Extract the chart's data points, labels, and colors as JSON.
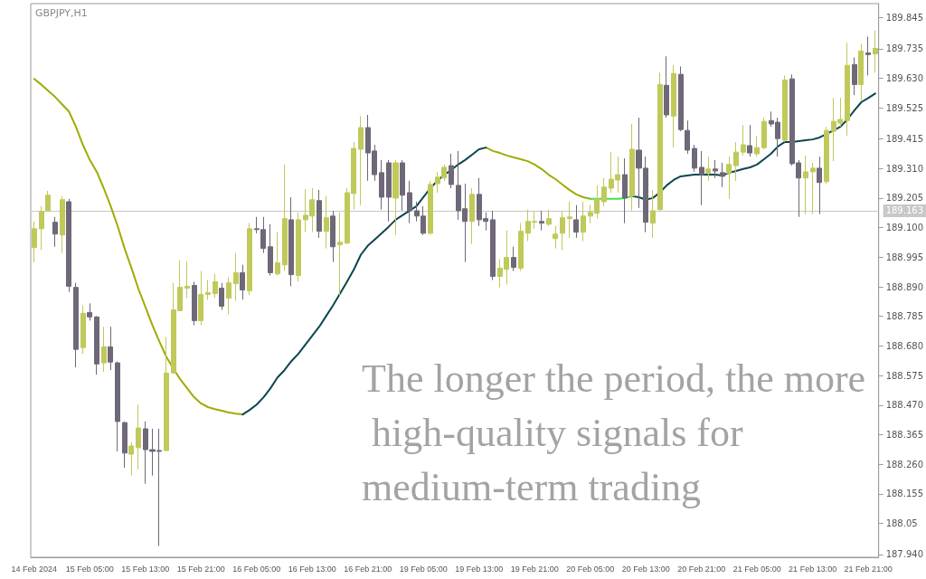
{
  "chart_data": {
    "type": "candlestick",
    "title": "GBPJPY,H1",
    "annotations": [
      "The longer the period, the more high-quality signals for medium-term trading"
    ],
    "categories": [
      "14 Feb 2024",
      null,
      null,
      null,
      null,
      null,
      null,
      null,
      "15 Feb 05:00",
      null,
      null,
      null,
      null,
      null,
      null,
      null,
      "15 Feb 13:00",
      null,
      null,
      null,
      null,
      null,
      null,
      null,
      "15 Feb 21:00",
      null,
      null,
      null,
      null,
      null,
      null,
      null,
      "16 Feb 05:00",
      null,
      null,
      null,
      null,
      null,
      null,
      null,
      "16 Feb 13:00",
      null,
      null,
      null,
      null,
      null,
      null,
      null,
      "16 Feb 21:00",
      null,
      null,
      null,
      null,
      null,
      null,
      null,
      "19 Feb 05:00",
      null,
      null,
      null,
      null,
      null,
      null,
      null,
      "19 Feb 13:00",
      null,
      null,
      null,
      null,
      null,
      null,
      null,
      "19 Feb 21:00",
      null,
      null,
      null,
      null,
      null,
      null,
      null,
      "20 Feb 05:00",
      null,
      null,
      null,
      null,
      null,
      null,
      null,
      "20 Feb 13:00",
      null,
      null,
      null,
      null,
      null,
      null,
      null,
      "20 Feb 21:00",
      null,
      null,
      null,
      null,
      null,
      null,
      null,
      "21 Feb 05:00",
      null,
      null,
      null,
      null,
      null,
      null,
      null,
      "21 Feb 13:00",
      null,
      null,
      null,
      null,
      null,
      null,
      null,
      "21 Feb 21:00",
      null
    ],
    "colors": [
      "#c0c95a",
      "#c0c95a",
      "#c0c95a",
      "#6f6878",
      "#c0c95a",
      "#6f6878",
      "#6f6878",
      "#c0c95a",
      "#6f6878",
      "#6f6878",
      "#c0c95a",
      "#6f6878",
      "#6f6878",
      "#6f6878",
      "#c0c95a",
      "#c0c95a",
      "#6f6878",
      "#6f6878",
      "#6f6878",
      "#c0c95a",
      "#c0c95a",
      "#c0c95a",
      "#c0c95a",
      "#6f6878",
      "#c0c95a",
      "#c0c95a",
      "#c0c95a",
      "#6f6878",
      "#c0c95a",
      "#c0c95a",
      "#6f6878",
      "#c0c95a",
      "#6f6878",
      "#6f6878",
      "#6f6878",
      "#c0c95a",
      "#c0c95a",
      "#6f6878",
      "#c0c95a",
      "#c0c95a",
      "#c0c95a",
      "#6f6878",
      "#c0c95a",
      "#6f6878",
      "#c0c95a",
      "#c0c95a",
      "#c0c95a",
      "#c0c95a",
      "#6f6878",
      "#6f6878",
      "#6f6878",
      "#6f6878",
      "#c0c95a",
      "#6f6878",
      "#6f6878",
      "#6f6878",
      "#6f6878",
      "#c0c95a",
      "#c0c95a",
      "#c0c95a",
      "#6f6878",
      "#6f6878",
      "#6f6878",
      "#c0c95a",
      "#6f6878",
      "#6f6878",
      "#6f6878",
      "#c0c95a",
      "#c0c95a",
      "#6f6878",
      "#c0c95a",
      "#c0c95a",
      "#c0c95a",
      "#6f6878",
      "#c0c95a",
      "#c0c95a",
      "#c0c95a",
      "#c0c95a",
      "#6f6878",
      "#c0c95a",
      "#c0c95a",
      "#c0c95a",
      "#c0c95a",
      "#c0c95a",
      "#c0c95a",
      "#6f6878",
      "#c0c95a",
      "#6f6878",
      "#6f6878",
      "#c0c95a",
      "#c0c95a",
      "#6f6878",
      "#c0c95a",
      "#6f6878",
      "#6f6878",
      "#6f6878",
      "#6f6878",
      "#c0c95a",
      "#6f6878",
      "#6f6878",
      "#c0c95a",
      "#c0c95a",
      "#c0c95a",
      "#6f6878",
      "#c0c95a",
      "#c0c95a",
      "#6f6878",
      "#6f6878",
      "#c0c95a",
      "#6f6878",
      "#6f6878",
      "#c0c95a",
      "#c0c95a",
      "#6f6878",
      "#c0c95a",
      "#c0c95a",
      "#c0c95a",
      "#c0c95a",
      "#6f6878",
      "#c0c95a",
      "#6f6878",
      "#c0c95a"
    ],
    "ohlc": [
      [
        189.029,
        189.122,
        188.978,
        189.096
      ],
      [
        189.096,
        189.176,
        189.02,
        189.157
      ],
      [
        189.16,
        189.231,
        189.16,
        189.215
      ],
      [
        189.119,
        189.138,
        189.032,
        189.077
      ],
      [
        189.074,
        189.212,
        189.01,
        189.199
      ],
      [
        189.192,
        189.202,
        188.872,
        188.892
      ],
      [
        188.888,
        188.904,
        188.604,
        188.668
      ],
      [
        188.674,
        188.824,
        188.652,
        188.796
      ],
      [
        188.799,
        188.831,
        188.77,
        188.783
      ],
      [
        188.783,
        188.786,
        188.578,
        188.616
      ],
      [
        188.62,
        188.748,
        188.588,
        188.677
      ],
      [
        188.677,
        188.748,
        188.594,
        188.623
      ],
      [
        188.62,
        188.625,
        188.306,
        188.412
      ],
      [
        188.408,
        188.412,
        188.248,
        188.3
      ],
      [
        188.296,
        188.338,
        188.22,
        188.325
      ],
      [
        188.319,
        188.472,
        188.242,
        188.389
      ],
      [
        188.386,
        188.412,
        188.191,
        188.312
      ],
      [
        188.312,
        188.386,
        188.22,
        188.306
      ],
      [
        188.309,
        188.386,
        187.97,
        188.306
      ],
      [
        188.309,
        188.712,
        188.306,
        188.584
      ],
      [
        188.584,
        188.904,
        188.584,
        188.808
      ],
      [
        188.805,
        188.984,
        188.805,
        188.888
      ],
      [
        188.885,
        188.981,
        188.85,
        188.892
      ],
      [
        188.895,
        188.908,
        188.754,
        188.77
      ],
      [
        188.77,
        188.946,
        188.754,
        188.863
      ],
      [
        188.863,
        188.914,
        188.844,
        188.869
      ],
      [
        188.866,
        188.936,
        188.85,
        188.908
      ],
      [
        188.885,
        188.904,
        188.808,
        188.821
      ],
      [
        188.85,
        188.924,
        188.792,
        188.904
      ],
      [
        188.901,
        189.01,
        188.84,
        188.94
      ],
      [
        188.94,
        188.968,
        188.844,
        188.879
      ],
      [
        188.876,
        189.116,
        188.86,
        189.096
      ],
      [
        189.096,
        189.138,
        189.08,
        189.093
      ],
      [
        189.093,
        189.138,
        189.01,
        189.026
      ],
      [
        189.032,
        189.112,
        188.93,
        188.94
      ],
      [
        188.936,
        189.084,
        188.93,
        188.975
      ],
      [
        188.968,
        189.324,
        188.946,
        189.132
      ],
      [
        189.128,
        189.208,
        188.892,
        188.933
      ],
      [
        188.93,
        189.154,
        188.908,
        189.128
      ],
      [
        189.128,
        189.237,
        189.084,
        189.144
      ],
      [
        189.141,
        189.24,
        189.084,
        189.199
      ],
      [
        189.196,
        189.234,
        189.064,
        189.087
      ],
      [
        189.087,
        189.212,
        189.026,
        189.135
      ],
      [
        189.141,
        189.16,
        188.978,
        189.032
      ],
      [
        189.039,
        189.154,
        188.86,
        189.048
      ],
      [
        189.045,
        189.24,
        189.042,
        189.224
      ],
      [
        189.221,
        189.404,
        189.164,
        189.381
      ],
      [
        189.378,
        189.496,
        189.18,
        189.455
      ],
      [
        189.455,
        189.5,
        189.266,
        189.365
      ],
      [
        189.372,
        189.394,
        189.266,
        189.288
      ],
      [
        189.295,
        189.34,
        189.164,
        189.208
      ],
      [
        189.33,
        189.34,
        189.122,
        189.208
      ],
      [
        189.205,
        189.34,
        189.074,
        189.33
      ],
      [
        189.33,
        189.34,
        189.16,
        189.215
      ],
      [
        189.224,
        189.266,
        189.116,
        189.16
      ],
      [
        189.16,
        189.192,
        189.122,
        189.141
      ],
      [
        189.141,
        189.176,
        189.074,
        189.08
      ],
      [
        189.08,
        189.266,
        189.074,
        189.253
      ],
      [
        189.256,
        189.298,
        189.224,
        189.279
      ],
      [
        189.276,
        189.324,
        189.266,
        189.314
      ],
      [
        189.32,
        189.362,
        189.24,
        189.253
      ],
      [
        189.25,
        189.372,
        189.128,
        189.16
      ],
      [
        189.167,
        189.256,
        188.978,
        189.122
      ],
      [
        189.122,
        189.24,
        189.042,
        189.218
      ],
      [
        189.218,
        189.276,
        189.106,
        189.128
      ],
      [
        189.132,
        189.154,
        189.09,
        189.122
      ],
      [
        189.128,
        189.16,
        188.914,
        188.927
      ],
      [
        188.927,
        188.988,
        188.888,
        188.956
      ],
      [
        188.952,
        189.09,
        188.898,
        188.994
      ],
      [
        188.994,
        189.032,
        188.946,
        188.959
      ],
      [
        188.956,
        189.116,
        188.946,
        189.087
      ],
      [
        189.08,
        189.164,
        189.052,
        189.122
      ],
      [
        189.119,
        189.16,
        189.096,
        189.122
      ],
      [
        189.122,
        189.16,
        189.09,
        189.116
      ],
      [
        189.112,
        189.164,
        189.106,
        189.132
      ],
      [
        189.061,
        189.106,
        189.026,
        189.077
      ],
      [
        189.08,
        189.16,
        189.02,
        189.135
      ],
      [
        189.132,
        189.192,
        189.064,
        189.138
      ],
      [
        189.128,
        189.18,
        189.064,
        189.084
      ],
      [
        189.084,
        189.192,
        189.052,
        189.141
      ],
      [
        189.141,
        189.18,
        189.116,
        189.154
      ],
      [
        189.151,
        189.25,
        189.132,
        189.202
      ],
      [
        189.192,
        189.276,
        189.176,
        189.244
      ],
      [
        189.24,
        189.368,
        189.224,
        189.272
      ],
      [
        189.269,
        189.352,
        189.224,
        189.288
      ],
      [
        189.288,
        189.346,
        189.116,
        189.205
      ],
      [
        189.212,
        189.468,
        189.16,
        189.378
      ],
      [
        189.375,
        189.49,
        189.17,
        189.311
      ],
      [
        189.311,
        189.352,
        189.084,
        189.119
      ],
      [
        189.116,
        189.234,
        189.064,
        189.16
      ],
      [
        189.164,
        189.65,
        189.16,
        189.608
      ],
      [
        189.605,
        189.708,
        189.49,
        189.5
      ],
      [
        189.496,
        189.676,
        189.384,
        189.647
      ],
      [
        189.644,
        189.672,
        189.442,
        189.448
      ],
      [
        189.445,
        189.48,
        189.362,
        189.375
      ],
      [
        189.381,
        189.394,
        189.298,
        189.311
      ],
      [
        189.314,
        189.372,
        189.18,
        189.288
      ],
      [
        189.292,
        189.352,
        189.266,
        189.308
      ],
      [
        189.308,
        189.34,
        189.276,
        189.301
      ],
      [
        189.295,
        189.33,
        189.244,
        189.282
      ],
      [
        189.292,
        189.352,
        189.202,
        189.324
      ],
      [
        189.32,
        189.404,
        189.266,
        189.368
      ],
      [
        189.368,
        189.464,
        189.356,
        189.394
      ],
      [
        189.391,
        189.464,
        189.352,
        189.365
      ],
      [
        189.362,
        189.426,
        189.352,
        189.384
      ],
      [
        189.384,
        189.49,
        189.378,
        189.477
      ],
      [
        189.48,
        189.512,
        189.458,
        189.468
      ],
      [
        189.474,
        189.49,
        189.352,
        189.416
      ],
      [
        189.41,
        189.64,
        189.404,
        189.624
      ],
      [
        189.628,
        189.644,
        189.32,
        189.327
      ],
      [
        189.33,
        189.34,
        189.138,
        189.276
      ],
      [
        189.276,
        189.356,
        189.148,
        189.298
      ],
      [
        189.298,
        189.33,
        189.148,
        189.311
      ],
      [
        189.311,
        189.352,
        189.148,
        189.26
      ],
      [
        189.263,
        189.458,
        189.256,
        189.445
      ],
      [
        189.442,
        189.56,
        189.336,
        189.477
      ],
      [
        189.471,
        189.56,
        189.458,
        189.484
      ],
      [
        189.48,
        189.756,
        189.426,
        189.676
      ],
      [
        189.679,
        189.704,
        189.57,
        189.608
      ],
      [
        189.608,
        189.752,
        189.548,
        189.727
      ],
      [
        189.72,
        189.778,
        189.64,
        189.714
      ],
      [
        189.717,
        189.8,
        189.65,
        189.736
      ]
    ],
    "series": [
      {
        "type": "line",
        "color": "#a3aa00",
        "values": [
          189.628,
          189.608,
          189.586,
          189.564,
          189.538,
          189.512,
          189.458,
          189.394,
          189.34,
          189.298,
          189.24,
          189.176,
          189.106,
          189.026,
          188.956,
          188.882,
          188.818,
          188.754,
          188.696,
          188.642,
          188.6,
          188.562,
          188.53,
          188.498,
          188.476,
          188.463,
          188.456,
          188.45,
          188.444,
          188.44,
          188.437,
          null,
          null,
          null,
          null,
          null,
          null,
          null,
          null,
          null,
          null,
          null,
          null,
          null,
          null,
          null,
          null,
          null,
          null,
          null,
          null,
          null,
          null,
          null,
          null,
          null,
          null,
          null,
          null,
          null,
          null,
          null,
          null,
          null,
          null,
          189.384,
          189.372,
          189.365,
          189.356,
          189.349,
          189.343,
          189.336,
          189.324,
          189.308,
          189.288,
          189.272,
          189.253,
          189.234,
          189.218,
          189.208,
          189.202,
          null,
          null,
          null,
          null,
          null,
          null,
          null,
          null,
          null,
          null,
          null,
          null,
          null,
          null,
          null,
          null,
          null,
          null,
          null,
          null,
          null,
          null,
          null,
          null,
          null,
          null,
          null,
          null,
          null,
          null,
          null,
          null,
          null,
          null,
          null,
          null,
          null,
          null,
          null,
          null,
          null
        ]
      },
      {
        "type": "line",
        "color": "#0b4650",
        "values": [
          null,
          null,
          null,
          null,
          null,
          null,
          null,
          null,
          null,
          null,
          null,
          null,
          null,
          null,
          null,
          null,
          null,
          null,
          null,
          null,
          null,
          null,
          null,
          null,
          null,
          null,
          null,
          null,
          null,
          null,
          188.437,
          188.453,
          188.472,
          188.498,
          188.53,
          188.568,
          188.594,
          188.626,
          188.652,
          188.684,
          188.716,
          188.748,
          188.786,
          188.824,
          188.866,
          188.908,
          188.952,
          189.004,
          189.036,
          189.058,
          189.08,
          189.103,
          189.128,
          189.144,
          189.16,
          189.176,
          189.208,
          189.24,
          189.266,
          189.288,
          189.304,
          189.324,
          189.34,
          189.359,
          189.378,
          189.384,
          null,
          null,
          null,
          null,
          null,
          null,
          null,
          null,
          null,
          null,
          null,
          null,
          null,
          null,
          null,
          null,
          null,
          null,
          null,
          null,
          189.212,
          189.208,
          189.199,
          189.205,
          189.224,
          189.25,
          189.269,
          189.282,
          189.285,
          189.288,
          189.288,
          189.288,
          189.288,
          189.285,
          189.295,
          189.301,
          189.308,
          189.314,
          189.324,
          189.343,
          189.362,
          189.388,
          189.404,
          189.404,
          189.407,
          189.41,
          189.413,
          189.42,
          189.432,
          189.445,
          189.458,
          189.484,
          189.516,
          189.545,
          189.56,
          189.576
        ]
      },
      {
        "type": "line",
        "color": "#44e04a",
        "values": [
          null,
          null,
          null,
          null,
          null,
          null,
          null,
          null,
          null,
          null,
          null,
          null,
          null,
          null,
          null,
          null,
          null,
          null,
          null,
          null,
          null,
          null,
          null,
          null,
          null,
          null,
          null,
          null,
          null,
          null,
          null,
          null,
          null,
          null,
          null,
          null,
          null,
          null,
          null,
          null,
          null,
          null,
          null,
          null,
          null,
          null,
          null,
          null,
          null,
          null,
          null,
          null,
          null,
          null,
          null,
          null,
          null,
          null,
          null,
          null,
          null,
          null,
          null,
          null,
          null,
          null,
          null,
          null,
          null,
          null,
          null,
          null,
          null,
          null,
          null,
          null,
          null,
          null,
          null,
          null,
          189.202,
          189.202,
          189.202,
          189.202,
          189.202,
          189.205,
          189.212,
          null,
          null,
          null,
          null,
          null,
          null,
          null,
          null,
          null,
          null,
          null,
          null,
          null,
          null,
          null,
          null,
          null,
          null,
          null,
          null,
          null,
          null,
          null,
          null,
          null,
          null,
          null,
          null,
          null,
          null,
          null,
          null,
          null,
          null,
          null
        ]
      }
    ],
    "ylim": [
      187.93,
      189.895
    ],
    "yticks": [
      {
        "value": 187.94,
        "label": "187.940"
      },
      188.05,
      188.155,
      {
        "value": 188.26,
        "label": "188.260"
      },
      188.365,
      {
        "value": 188.47,
        "label": "188.470"
      },
      188.575,
      {
        "value": 188.68,
        "label": "188.680"
      },
      188.785,
      {
        "value": 188.89,
        "label": "188.890"
      },
      188.995,
      {
        "value": 189.1,
        "label": "189.100"
      },
      189.205,
      {
        "value": 189.31,
        "label": "189.310"
      },
      189.415,
      189.525,
      {
        "value": 189.63,
        "label": "189.630"
      },
      189.735,
      189.845
    ],
    "ref_lines": [
      {
        "axis": "y",
        "value": 189.163,
        "label": "189.163",
        "color": "#c8c8c8"
      }
    ]
  }
}
